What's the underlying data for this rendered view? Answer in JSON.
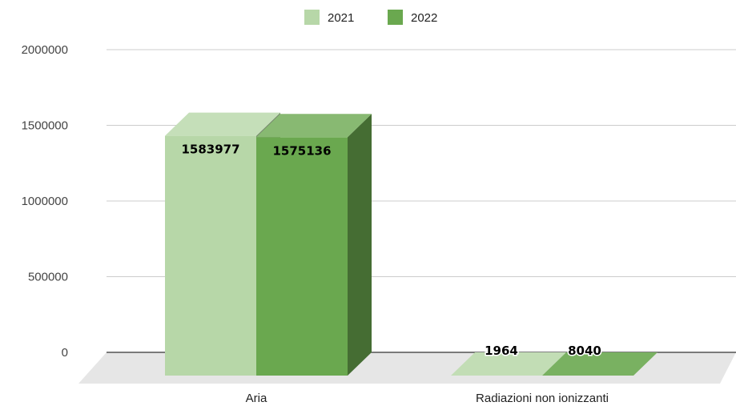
{
  "chart_data": {
    "type": "bar",
    "categories": [
      "Aria",
      "Radiazioni non ionizzanti"
    ],
    "series": [
      {
        "name": "2021",
        "values": [
          1583977,
          1964
        ],
        "color": "#b7d7a8"
      },
      {
        "name": "2022",
        "values": [
          1575136,
          8040
        ],
        "color": "#6aa84f"
      }
    ],
    "ylim": [
      0,
      2000000
    ],
    "yticks": [
      0,
      500000,
      1000000,
      1500000,
      2000000
    ],
    "legend_position": "top-center",
    "grid": true,
    "three_d": true,
    "title": "",
    "xlabel": "",
    "ylabel": ""
  }
}
